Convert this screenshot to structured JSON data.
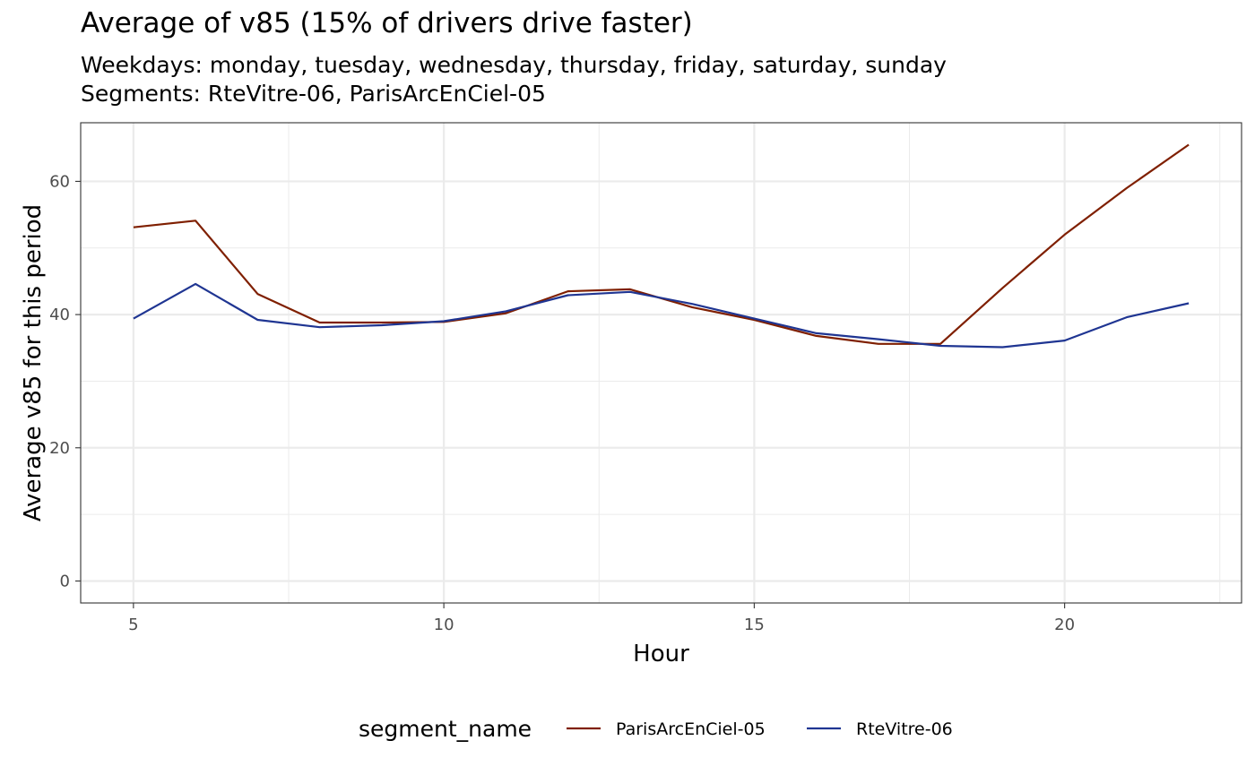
{
  "chart_data": {
    "type": "line",
    "title": "Average of v85 (15% of drivers drive faster)",
    "subtitle": [
      "Weekdays: monday, tuesday, wednesday, thursday, friday, saturday, sunday",
      "Segments: RteVitre-06, ParisArcEnCiel-05"
    ],
    "xlabel": "Hour",
    "ylabel": "Average v85 for this period",
    "xlim": [
      4.15,
      22.85
    ],
    "ylim": [
      -3.3,
      68.8
    ],
    "x_ticks": [
      5,
      10,
      15,
      20
    ],
    "y_ticks": [
      0,
      20,
      40,
      60
    ],
    "grid": true,
    "legend": {
      "title": "segment_name",
      "position": "bottom"
    },
    "series": [
      {
        "name": "ParisArcEnCiel-05",
        "color": "#7f1f00",
        "x": [
          5,
          6,
          7,
          8,
          9,
          10,
          11,
          12,
          13,
          14,
          15,
          16,
          17,
          18,
          19,
          20,
          21,
          22
        ],
        "values": [
          53.1,
          54.1,
          43.1,
          38.8,
          38.8,
          38.9,
          40.2,
          43.5,
          43.8,
          41.1,
          39.2,
          36.8,
          35.6,
          35.6,
          44,
          52,
          59,
          65.5
        ]
      },
      {
        "name": "RteVitre-06",
        "color": "#1f3592",
        "x": [
          5,
          6,
          7,
          8,
          9,
          10,
          11,
          12,
          13,
          14,
          15,
          16,
          17,
          18,
          19,
          20,
          21,
          22
        ],
        "values": [
          39.4,
          44.6,
          39.2,
          38.1,
          38.4,
          39,
          40.5,
          42.9,
          43.4,
          41.6,
          39.4,
          37.2,
          36.3,
          35.3,
          35.1,
          36.1,
          39.6,
          41.7
        ]
      }
    ]
  }
}
